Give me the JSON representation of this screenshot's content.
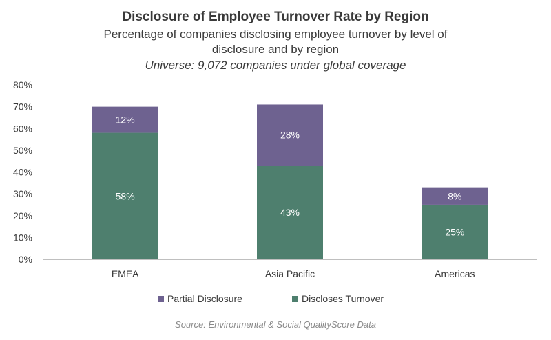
{
  "chart_data": {
    "type": "bar",
    "stacked": true,
    "title": "Disclosure of Employee Turnover Rate by Region",
    "subtitle": "Percentage of companies disclosing employee turnover by level of disclosure and by region",
    "note": "Universe: 9,072 companies under global coverage",
    "categories": [
      "EMEA",
      "Asia Pacific",
      "Americas"
    ],
    "series": [
      {
        "name": "Discloses Turnover",
        "values": [
          58,
          43,
          25
        ],
        "labels": [
          "58%",
          "43%",
          "25%"
        ],
        "color": "#4e7f6e"
      },
      {
        "name": "Partial Disclosure",
        "values": [
          12,
          28,
          8
        ],
        "labels": [
          "12%",
          "28%",
          "8%"
        ],
        "color": "#6e6290"
      }
    ],
    "ylim": [
      0,
      80
    ],
    "yticks": [
      "0%",
      "10%",
      "20%",
      "30%",
      "40%",
      "50%",
      "60%",
      "70%",
      "80%"
    ],
    "grid": false,
    "legend_position": "bottom",
    "legend_order": [
      "Partial Disclosure",
      "Discloses Turnover"
    ],
    "source": "Source: Environmental & Social QualityScore Data"
  }
}
